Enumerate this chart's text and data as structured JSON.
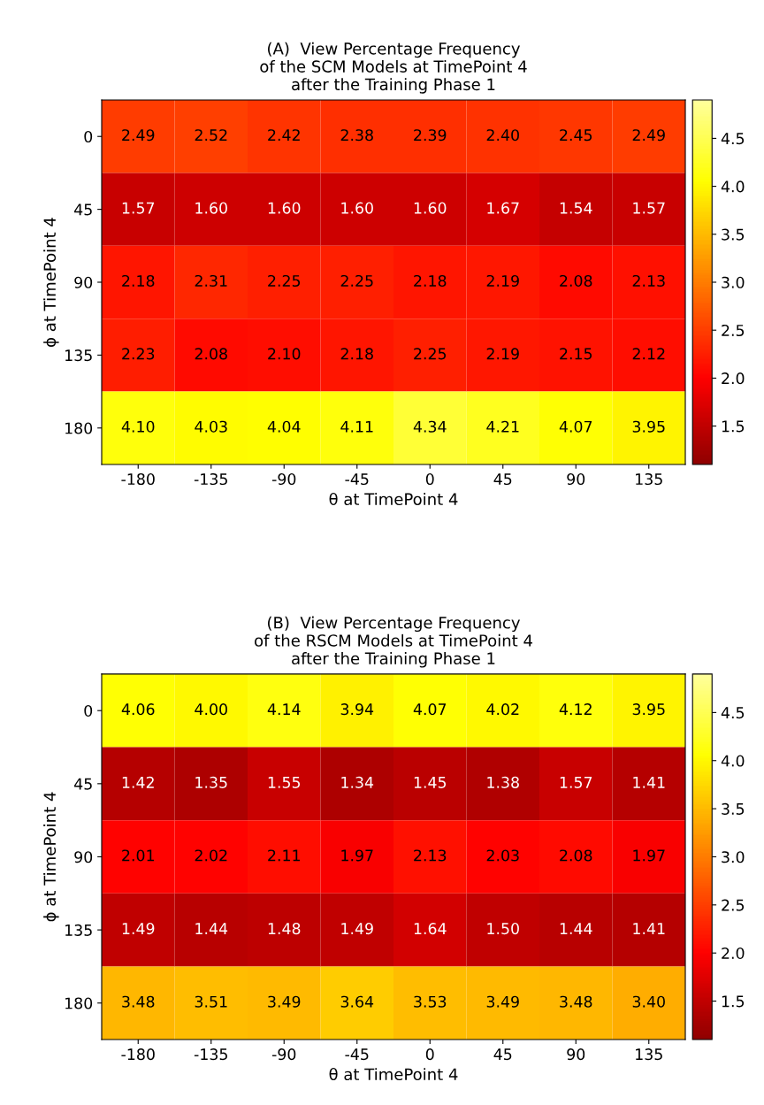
{
  "chart_data": [
    {
      "type": "heatmap",
      "title": "(A)  View Percentage Frequency\nof the SCM Models at TimePoint 4\nafter the Training Phase 1",
      "xlabel": "θ at TimePoint 4",
      "ylabel": "ϕ at TimePoint 4",
      "categories": [
        "-180",
        "-135",
        "-90",
        "-45",
        "0",
        "45",
        "90",
        "135"
      ],
      "y_categories": [
        "0",
        "45",
        "90",
        "135",
        "180"
      ],
      "cells": [
        [
          2.49,
          2.52,
          2.42,
          2.38,
          2.39,
          2.4,
          2.45,
          2.49
        ],
        [
          1.57,
          1.6,
          1.6,
          1.6,
          1.6,
          1.67,
          1.54,
          1.57
        ],
        [
          2.18,
          2.31,
          2.25,
          2.25,
          2.18,
          2.19,
          2.08,
          2.13
        ],
        [
          2.23,
          2.08,
          2.1,
          2.18,
          2.25,
          2.19,
          2.15,
          2.12
        ],
        [
          4.1,
          4.03,
          4.04,
          4.11,
          4.34,
          4.21,
          4.07,
          3.95
        ]
      ],
      "cell_labels": [
        [
          "2.49",
          "2.52",
          "2.42",
          "2.38",
          "2.39",
          "2.40",
          "2.45",
          "2.49"
        ],
        [
          "1.57",
          "1.60",
          "1.60",
          "1.60",
          "1.60",
          "1.67",
          "1.54",
          "1.57"
        ],
        [
          "2.18",
          "2.31",
          "2.25",
          "2.25",
          "2.18",
          "2.19",
          "2.08",
          "2.13"
        ],
        [
          "2.23",
          "2.08",
          "2.10",
          "2.18",
          "2.25",
          "2.19",
          "2.15",
          "2.12"
        ],
        [
          "4.10",
          "4.03",
          "4.04",
          "4.11",
          "4.34",
          "4.21",
          "4.07",
          "3.95"
        ]
      ],
      "clim": [
        1.1,
        4.9
      ],
      "cticks": [
        1.5,
        {
          "value": 2,
          "label": "2.0"
        },
        2.5,
        {
          "value": 3,
          "label": "3.0"
        },
        3.5,
        {
          "value": 4,
          "label": "4.0"
        },
        4.5
      ]
    },
    {
      "type": "heatmap",
      "title": "(B)  View Percentage Frequency\nof the RSCM Models at TimePoint 4\nafter the Training Phase 1",
      "xlabel": "θ at TimePoint 4",
      "ylabel": "ϕ at TimePoint 4",
      "categories": [
        "-180",
        "-135",
        "-90",
        "-45",
        "0",
        "45",
        "90",
        "135"
      ],
      "y_categories": [
        "0",
        "45",
        "90",
        "135",
        "180"
      ],
      "cells": [
        [
          4.06,
          4.0,
          4.14,
          3.94,
          4.07,
          4.02,
          4.12,
          3.95
        ],
        [
          1.42,
          1.35,
          1.55,
          1.34,
          1.45,
          1.38,
          1.57,
          1.41
        ],
        [
          2.01,
          2.02,
          2.11,
          1.97,
          2.13,
          2.03,
          2.08,
          1.97
        ],
        [
          1.49,
          1.44,
          1.48,
          1.49,
          1.64,
          1.5,
          1.44,
          1.41
        ],
        [
          3.48,
          3.51,
          3.49,
          3.64,
          3.53,
          3.49,
          3.48,
          3.4
        ]
      ],
      "cell_labels": [
        [
          "4.06",
          "4.00",
          "4.14",
          "3.94",
          "4.07",
          "4.02",
          "4.12",
          "3.95"
        ],
        [
          "1.42",
          "1.35",
          "1.55",
          "1.34",
          "1.45",
          "1.38",
          "1.57",
          "1.41"
        ],
        [
          "2.01",
          "2.02",
          "2.11",
          "1.97",
          "2.13",
          "2.03",
          "2.08",
          "1.97"
        ],
        [
          "1.49",
          "1.44",
          "1.48",
          "1.49",
          "1.64",
          "1.50",
          "1.44",
          "1.41"
        ],
        [
          "3.48",
          "3.51",
          "3.49",
          "3.64",
          "3.53",
          "3.49",
          "3.48",
          "3.40"
        ]
      ],
      "clim": [
        1.1,
        4.9
      ],
      "cticks": [
        1.5,
        {
          "value": 2,
          "label": "2.0"
        },
        2.5,
        {
          "value": 3,
          "label": "3.0"
        },
        3.5,
        {
          "value": 4,
          "label": "4.0"
        },
        4.5
      ]
    }
  ]
}
